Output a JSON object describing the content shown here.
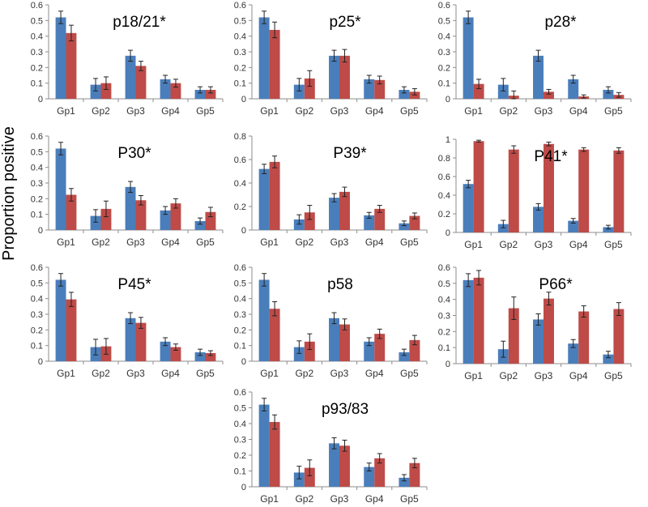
{
  "figure": {
    "ylabel": "Proportion positive",
    "colors": {
      "series_1": "#4a7ebb",
      "series_2": "#be4b48"
    }
  },
  "chart_data": [
    {
      "type": "bar",
      "title": "p18/21*",
      "categories": [
        "Gp1",
        "Gp2",
        "Gp3",
        "Gp4",
        "Gp5"
      ],
      "ylim": [
        0,
        0.6
      ],
      "yticks": [
        "0",
        "0.1",
        "0.2",
        "0.3",
        "0.4",
        "0.5",
        "0.6"
      ],
      "series": [
        {
          "values": [
            0.52,
            0.09,
            0.275,
            0.125,
            0.057
          ],
          "errors": [
            0.04,
            0.04,
            0.035,
            0.025,
            0.02
          ]
        },
        {
          "values": [
            0.42,
            0.1,
            0.21,
            0.1,
            0.057
          ],
          "errors": [
            0.05,
            0.04,
            0.03,
            0.025,
            0.02
          ]
        }
      ]
    },
    {
      "type": "bar",
      "title": "p25*",
      "categories": [
        "Gp1",
        "Gp2",
        "Gp3",
        "Gp4",
        "Gp5"
      ],
      "ylim": [
        0,
        0.6
      ],
      "yticks": [
        "0",
        "0.1",
        "0.2",
        "0.3",
        "0.4",
        "0.5",
        "0.6"
      ],
      "series": [
        {
          "values": [
            0.52,
            0.09,
            0.275,
            0.125,
            0.057
          ],
          "errors": [
            0.04,
            0.04,
            0.035,
            0.025,
            0.02
          ]
        },
        {
          "values": [
            0.44,
            0.13,
            0.275,
            0.12,
            0.045
          ],
          "errors": [
            0.05,
            0.05,
            0.04,
            0.025,
            0.02
          ]
        }
      ]
    },
    {
      "type": "bar",
      "title": "p28*",
      "categories": [
        "Gp1",
        "Gp2",
        "Gp3",
        "Gp4",
        "Gp5"
      ],
      "ylim": [
        0,
        0.6
      ],
      "yticks": [
        "0",
        "0.1",
        "0.2",
        "0.3",
        "0.4",
        "0.5",
        "0.6"
      ],
      "series": [
        {
          "values": [
            0.52,
            0.09,
            0.275,
            0.125,
            0.057
          ],
          "errors": [
            0.04,
            0.04,
            0.035,
            0.025,
            0.02
          ]
        },
        {
          "values": [
            0.095,
            0.02,
            0.045,
            0.015,
            0.025
          ],
          "errors": [
            0.03,
            0.03,
            0.015,
            0.01,
            0.015
          ]
        }
      ]
    },
    {
      "type": "bar",
      "title": "P30*",
      "categories": [
        "Gp1",
        "Gp2",
        "Gp3",
        "Gp4",
        "Gp5"
      ],
      "ylim": [
        0,
        0.6
      ],
      "yticks": [
        "0",
        "0.1",
        "0.2",
        "0.3",
        "0.4",
        "0.5",
        "0.6"
      ],
      "series": [
        {
          "values": [
            0.52,
            0.09,
            0.275,
            0.125,
            0.057
          ],
          "errors": [
            0.04,
            0.04,
            0.035,
            0.025,
            0.02
          ]
        },
        {
          "values": [
            0.225,
            0.135,
            0.19,
            0.17,
            0.115
          ],
          "errors": [
            0.04,
            0.05,
            0.03,
            0.03,
            0.03
          ]
        }
      ]
    },
    {
      "type": "bar",
      "title": "P39*",
      "categories": [
        "Gp1",
        "Gp2",
        "Gp3",
        "Gp4",
        "Gp5"
      ],
      "ylim": [
        0,
        0.8
      ],
      "yticks": [
        "0",
        "0.2",
        "0.4",
        "0.6",
        "0.8"
      ],
      "series": [
        {
          "values": [
            0.52,
            0.09,
            0.275,
            0.125,
            0.057
          ],
          "errors": [
            0.04,
            0.04,
            0.035,
            0.025,
            0.02
          ]
        },
        {
          "values": [
            0.58,
            0.15,
            0.325,
            0.18,
            0.12
          ],
          "errors": [
            0.05,
            0.06,
            0.04,
            0.03,
            0.025
          ]
        }
      ]
    },
    {
      "type": "bar",
      "title": "P41*",
      "categories": [
        "Gp1",
        "Gp2",
        "Gp3",
        "Gp4",
        "Gp5"
      ],
      "ylim": [
        0,
        1
      ],
      "yticks": [
        "0",
        "0.2",
        "0.4",
        "0.6",
        "0.8",
        "1"
      ],
      "series": [
        {
          "values": [
            0.52,
            0.09,
            0.275,
            0.125,
            0.057
          ],
          "errors": [
            0.04,
            0.04,
            0.035,
            0.025,
            0.02
          ]
        },
        {
          "values": [
            0.98,
            0.89,
            0.95,
            0.89,
            0.88
          ],
          "errors": [
            0.01,
            0.04,
            0.02,
            0.02,
            0.03
          ]
        }
      ]
    },
    {
      "type": "bar",
      "title": "P45*",
      "categories": [
        "Gp1",
        "Gp2",
        "Gp3",
        "Gp4",
        "Gp5"
      ],
      "ylim": [
        0,
        0.6
      ],
      "yticks": [
        "0",
        "0.1",
        "0.2",
        "0.3",
        "0.4",
        "0.5",
        "0.6"
      ],
      "series": [
        {
          "values": [
            0.52,
            0.09,
            0.275,
            0.125,
            0.057
          ],
          "errors": [
            0.04,
            0.05,
            0.035,
            0.025,
            0.02
          ]
        },
        {
          "values": [
            0.395,
            0.095,
            0.245,
            0.09,
            0.052
          ],
          "errors": [
            0.045,
            0.05,
            0.035,
            0.02,
            0.015
          ]
        }
      ]
    },
    {
      "type": "bar",
      "title": "p58",
      "categories": [
        "Gp1",
        "Gp2",
        "Gp3",
        "Gp4",
        "Gp5"
      ],
      "ylim": [
        0,
        0.6
      ],
      "yticks": [
        "0",
        "0.1",
        "0.2",
        "0.3",
        "0.4",
        "0.5",
        "0.6"
      ],
      "series": [
        {
          "values": [
            0.52,
            0.09,
            0.275,
            0.125,
            0.057
          ],
          "errors": [
            0.04,
            0.04,
            0.035,
            0.025,
            0.02
          ]
        },
        {
          "values": [
            0.335,
            0.125,
            0.235,
            0.175,
            0.135
          ],
          "errors": [
            0.045,
            0.05,
            0.035,
            0.03,
            0.03
          ]
        }
      ]
    },
    {
      "type": "bar",
      "title": "P66*",
      "categories": [
        "Gp1",
        "Gp2",
        "Gp3",
        "Gp4",
        "Gp5"
      ],
      "ylim": [
        0,
        0.6
      ],
      "yticks": [
        "0",
        "0.1",
        "0.2",
        "0.3",
        "0.4",
        "0.5",
        "0.6"
      ],
      "series": [
        {
          "values": [
            0.52,
            0.09,
            0.275,
            0.125,
            0.057
          ],
          "errors": [
            0.04,
            0.05,
            0.035,
            0.025,
            0.02
          ]
        },
        {
          "values": [
            0.535,
            0.345,
            0.405,
            0.325,
            0.34
          ],
          "errors": [
            0.045,
            0.07,
            0.04,
            0.035,
            0.04
          ]
        }
      ]
    },
    {
      "type": "bar",
      "title": "p93/83",
      "categories": [
        "Gp1",
        "Gp2",
        "Gp3",
        "Gp4",
        "Gp5"
      ],
      "ylim": [
        0,
        0.6
      ],
      "yticks": [
        "0",
        "0.1",
        "0.2",
        "0.3",
        "0.4",
        "0.5",
        "0.6"
      ],
      "series": [
        {
          "values": [
            0.52,
            0.09,
            0.275,
            0.125,
            0.057
          ],
          "errors": [
            0.04,
            0.04,
            0.035,
            0.025,
            0.02
          ]
        },
        {
          "values": [
            0.41,
            0.12,
            0.26,
            0.18,
            0.15
          ],
          "errors": [
            0.045,
            0.05,
            0.035,
            0.03,
            0.03
          ]
        }
      ]
    }
  ]
}
